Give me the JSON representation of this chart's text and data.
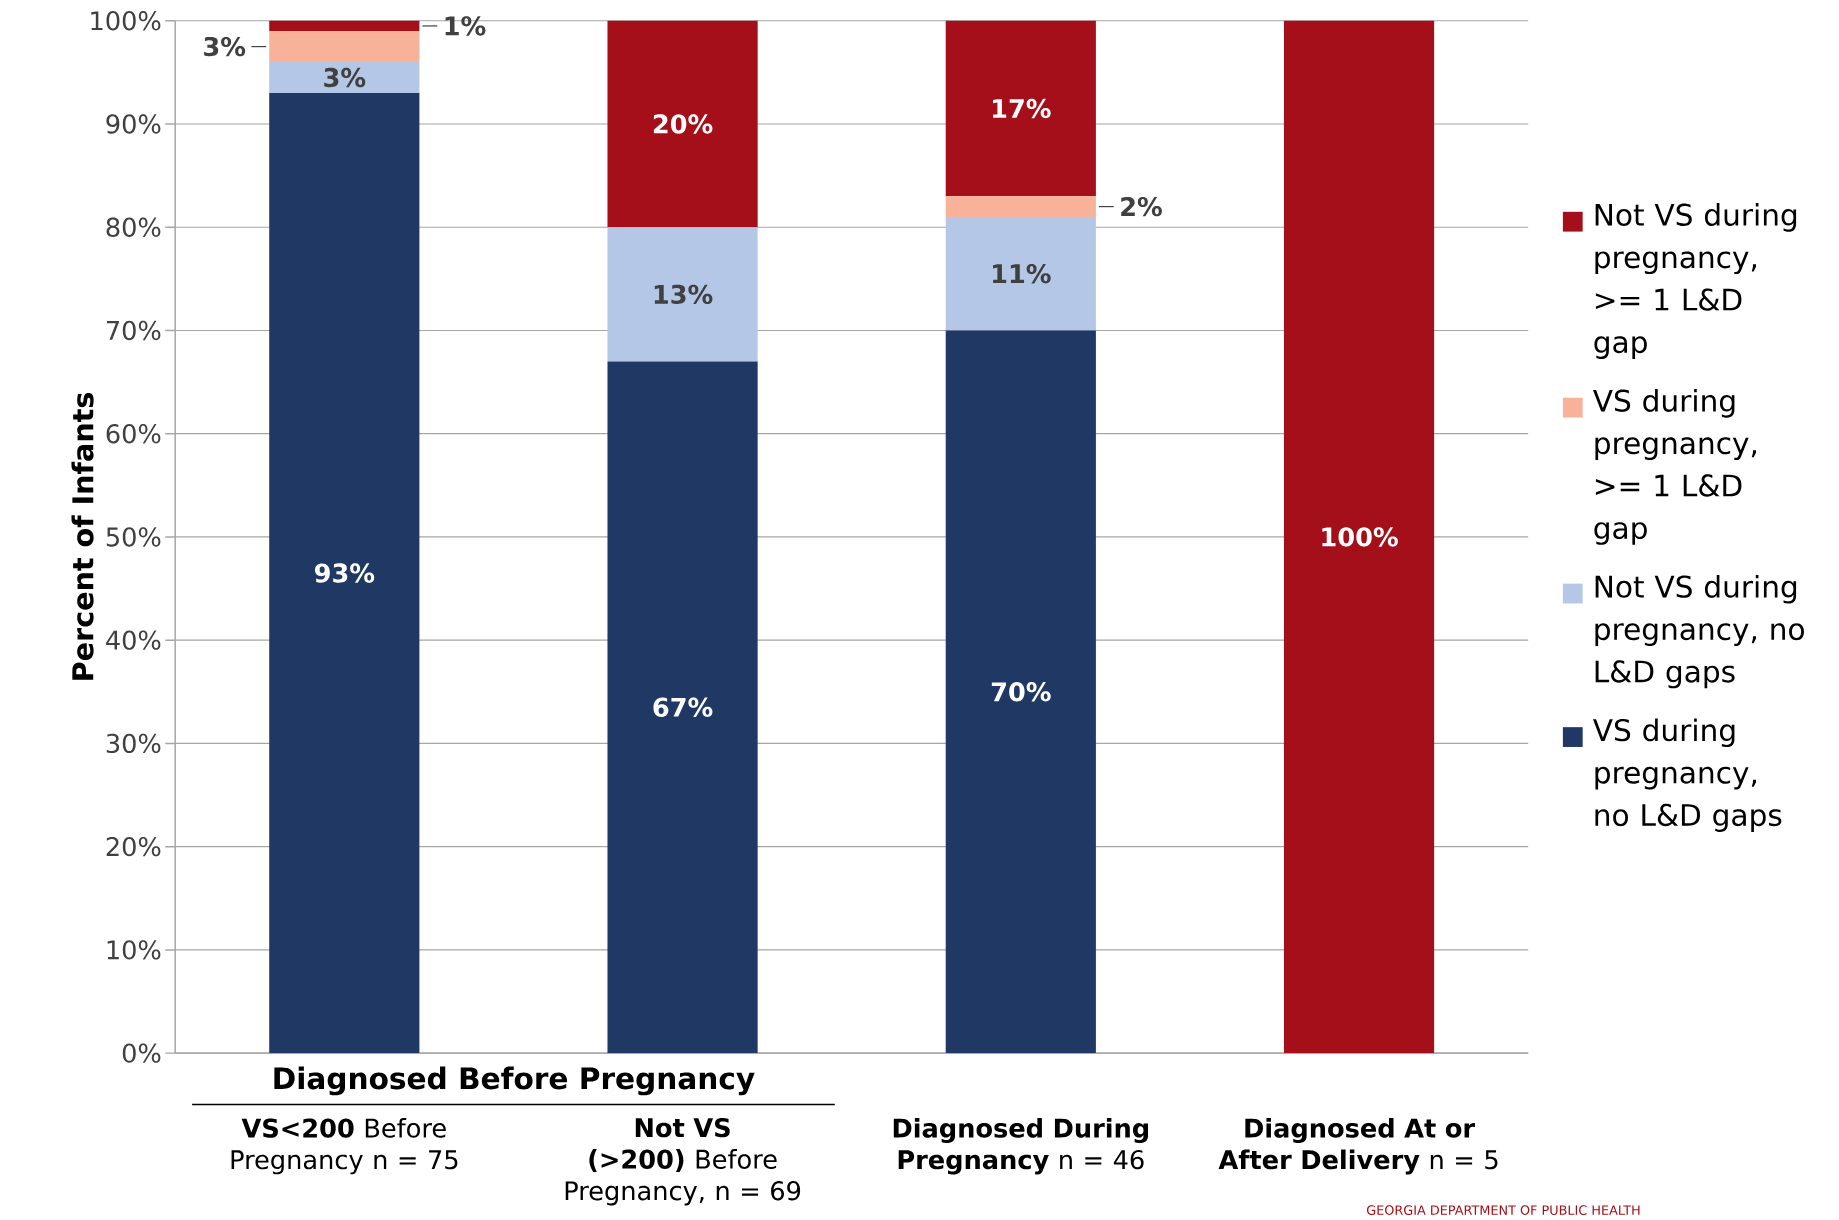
{
  "chart_data": {
    "type": "bar",
    "stacked": true,
    "ylabel": "Percent of Infants",
    "categories": [
      "**VS<200** Before Pregnancy n = 75",
      "**Not VS (>200)** Before Pregnancy, n = 69",
      "**Diagnosed During Pregnancy** n = 46",
      "**Diagnosed At or After Delivery** n = 5"
    ],
    "series": [
      {
        "name": "VS during pregnancy, no L&D gaps",
        "color": "#203864",
        "values": [
          93,
          67,
          70,
          0
        ],
        "value_labels": [
          "93%",
          "67%",
          "70%",
          null
        ]
      },
      {
        "name": "Not VS during pregnancy, no L&D gaps",
        "color": "#b4c7e7",
        "values": [
          3,
          13,
          11,
          0
        ],
        "value_labels": [
          "3%",
          "13%",
          "11%",
          null
        ]
      },
      {
        "name": "VS during pregnancy, >= 1 L&D gap",
        "color": "#f9b29a",
        "values": [
          3,
          0,
          2,
          0
        ],
        "value_labels": [
          "3%",
          null,
          "2%",
          null
        ]
      },
      {
        "name": "Not VS during pregnancy, >= 1 L&D gap",
        "color": "#a50f19",
        "values": [
          1,
          20,
          17,
          100
        ],
        "value_labels": [
          "1%",
          "20%",
          "17%",
          "100%"
        ]
      }
    ],
    "ylim": [
      0,
      100
    ],
    "yticks": [
      {
        "value": 0,
        "label": "0%"
      },
      {
        "value": 10,
        "label": "10%"
      },
      {
        "value": 20,
        "label": "20%"
      },
      {
        "value": 30,
        "label": "30%"
      },
      {
        "value": 40,
        "label": "40%"
      },
      {
        "value": 50,
        "label": "50%"
      },
      {
        "value": 60,
        "label": "60%"
      },
      {
        "value": 70,
        "label": "70%"
      },
      {
        "value": 80,
        "label": "80%"
      },
      {
        "value": 90,
        "label": "90%"
      },
      {
        "value": 100,
        "label": "100%"
      }
    ],
    "grid": "y",
    "legend": "right",
    "annotations": [
      "Diagnosed Before Pregnancy",
      "GEORGIA DEPARTMENT OF PUBLIC HEALTH"
    ]
  }
}
